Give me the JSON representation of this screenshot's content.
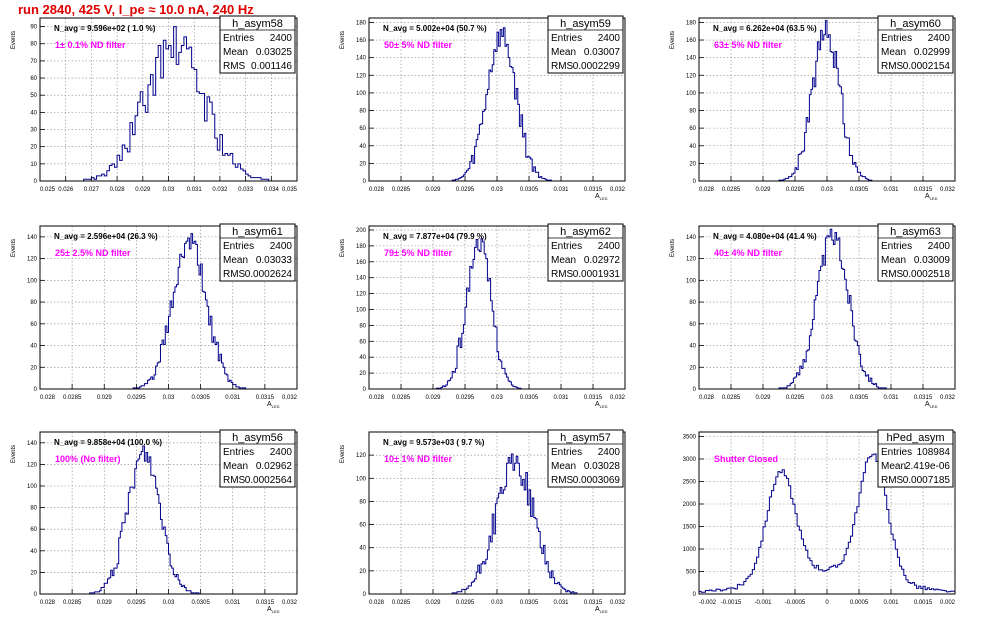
{
  "run_title": "run 2840,   425 V, I_pe ≈ 10.0 nA, 240 Hz",
  "colors": {
    "title": "#e00000",
    "histogram": "#00008b",
    "annotation": "#ff00ff",
    "grid": "#888888"
  },
  "chart_data": [
    {
      "type": "histogram",
      "hist_name": "h_asym58",
      "stats": {
        "entries": "2400",
        "mean": "0.03025",
        "rms": "0.001146"
      },
      "navg": "N_avg = 9.596e+02 ( 1.0 %)",
      "annotation": "1± 0.1% ND filter",
      "ylabel": "Events",
      "xlabel": "",
      "xlim": [
        0.025,
        0.035
      ],
      "ylim": [
        0,
        95
      ],
      "xticks": [
        0.025,
        0.026,
        0.027,
        0.028,
        0.029,
        0.03,
        0.031,
        0.032,
        0.033,
        0.034,
        0.035
      ],
      "xticklabels": [
        "0.025",
        "0.026",
        "0.027",
        "0.028",
        "0.029",
        "0.03",
        "0.031",
        "0.032",
        "0.033",
        "0.034",
        "0.035"
      ],
      "yticks": [
        0,
        10,
        20,
        30,
        40,
        50,
        60,
        70,
        80,
        90
      ],
      "yticklabels": [
        "0",
        "10",
        "20",
        "30",
        "40",
        "50",
        "60",
        "70",
        "80",
        "90"
      ],
      "shape": {
        "peaks": [
          {
            "mean": 0.03025,
            "sigma": 0.00115,
            "height": 78
          }
        ],
        "noise": 12,
        "bins": 100,
        "seed": 58
      }
    },
    {
      "type": "histogram",
      "hist_name": "h_asym59",
      "stats": {
        "entries": "2400",
        "mean": "0.03007",
        "rms": "0.0002299"
      },
      "navg": "N_avg = 5.002e+04 (50.7 %)",
      "annotation": "50± 5% ND filter",
      "ylabel": "Events",
      "xlabel": "A",
      "xlim": [
        0.028,
        0.032
      ],
      "ylim": [
        0,
        185
      ],
      "xticks": [
        0.028,
        0.0285,
        0.029,
        0.0295,
        0.03,
        0.0305,
        0.031,
        0.0315,
        0.032
      ],
      "xticklabels": [
        "0.028",
        "0.0285",
        "0.029",
        "0.0295",
        "0.03",
        "0.0305",
        "0.031",
        "0.0315",
        "0.032"
      ],
      "yticks": [
        0,
        20,
        40,
        60,
        80,
        100,
        120,
        140,
        160,
        180
      ],
      "yticklabels": [
        "0",
        "20",
        "40",
        "60",
        "80",
        "100",
        "120",
        "140",
        "160",
        "180"
      ],
      "shape": {
        "peaks": [
          {
            "mean": 0.03007,
            "sigma": 0.00023,
            "height": 165
          }
        ],
        "noise": 14,
        "bins": 160,
        "seed": 59
      }
    },
    {
      "type": "histogram",
      "hist_name": "h_asym60",
      "stats": {
        "entries": "2400",
        "mean": "0.02999",
        "rms": "0.0002154"
      },
      "navg": "N_avg = 6.262e+04 (63.5 %)",
      "annotation": "63± 5% ND filter",
      "ylabel": "Events",
      "xlabel": "A",
      "xlim": [
        0.028,
        0.032
      ],
      "ylim": [
        0,
        185
      ],
      "xticks": [
        0.028,
        0.0285,
        0.029,
        0.0295,
        0.03,
        0.0305,
        0.031,
        0.0315,
        0.032
      ],
      "xticklabels": [
        "0.028",
        "0.0285",
        "0.029",
        "0.0295",
        "0.03",
        "0.0305",
        "0.031",
        "0.0315",
        "0.032"
      ],
      "yticks": [
        0,
        20,
        40,
        60,
        80,
        100,
        120,
        140,
        160,
        180
      ],
      "yticklabels": [
        "0",
        "20",
        "40",
        "60",
        "80",
        "100",
        "120",
        "140",
        "160",
        "180"
      ],
      "shape": {
        "peaks": [
          {
            "mean": 0.02999,
            "sigma": 0.000215,
            "height": 170
          }
        ],
        "noise": 16,
        "bins": 160,
        "seed": 60
      }
    },
    {
      "type": "histogram",
      "hist_name": "h_asym61",
      "stats": {
        "entries": "2400",
        "mean": "0.03033",
        "rms": "0.0002624"
      },
      "navg": "N_avg = 2.596e+04 (26.3 %)",
      "annotation": "25± 2.5% ND filter",
      "ylabel": "Events",
      "xlabel": "A",
      "xlim": [
        0.028,
        0.032
      ],
      "ylim": [
        0,
        150
      ],
      "xticks": [
        0.028,
        0.0285,
        0.029,
        0.0295,
        0.03,
        0.0305,
        0.031,
        0.0315,
        0.032
      ],
      "xticklabels": [
        "0.028",
        "0.0285",
        "0.029",
        "0.0295",
        "0.03",
        "0.0305",
        "0.031",
        "0.0315",
        "0.032"
      ],
      "yticks": [
        0,
        20,
        40,
        60,
        80,
        100,
        120,
        140
      ],
      "yticklabels": [
        "0",
        "20",
        "40",
        "60",
        "80",
        "100",
        "120",
        "140"
      ],
      "shape": {
        "peaks": [
          {
            "mean": 0.03033,
            "sigma": 0.00026,
            "height": 135
          }
        ],
        "noise": 10,
        "bins": 160,
        "seed": 61
      }
    },
    {
      "type": "histogram",
      "hist_name": "h_asym62",
      "stats": {
        "entries": "2400",
        "mean": "0.02972",
        "rms": "0.0001931"
      },
      "navg": "N_avg = 7.877e+04 (79.9 %)",
      "annotation": "79± 5% ND filter",
      "ylabel": "Events",
      "xlabel": "A",
      "xlim": [
        0.028,
        0.032
      ],
      "ylim": [
        0,
        205
      ],
      "xticks": [
        0.028,
        0.0285,
        0.029,
        0.0295,
        0.03,
        0.0305,
        0.031,
        0.0315,
        0.032
      ],
      "xticklabels": [
        "0.028",
        "0.0285",
        "0.029",
        "0.0295",
        "0.03",
        "0.0305",
        "0.031",
        "0.0315",
        "0.032"
      ],
      "yticks": [
        0,
        20,
        40,
        60,
        80,
        100,
        120,
        140,
        160,
        180,
        200
      ],
      "yticklabels": [
        "0",
        "20",
        "40",
        "60",
        "80",
        "100",
        "120",
        "140",
        "160",
        "180",
        "200"
      ],
      "shape": {
        "peaks": [
          {
            "mean": 0.02972,
            "sigma": 0.000193,
            "height": 185
          }
        ],
        "noise": 12,
        "bins": 160,
        "seed": 62
      }
    },
    {
      "type": "histogram",
      "hist_name": "h_asym63",
      "stats": {
        "entries": "2400",
        "mean": "0.03009",
        "rms": "0.0002518"
      },
      "navg": "N_avg = 4.080e+04 (41.4 %)",
      "annotation": "40± 4% ND filter",
      "ylabel": "Events",
      "xlabel": "A",
      "xlim": [
        0.028,
        0.032
      ],
      "ylim": [
        0,
        150
      ],
      "xticks": [
        0.028,
        0.0285,
        0.029,
        0.0295,
        0.03,
        0.0305,
        0.031,
        0.0315,
        0.032
      ],
      "xticklabels": [
        "0.028",
        "0.0285",
        "0.029",
        "0.0295",
        "0.03",
        "0.0305",
        "0.031",
        "0.0315",
        "0.032"
      ],
      "yticks": [
        0,
        20,
        40,
        60,
        80,
        100,
        120,
        140
      ],
      "yticklabels": [
        "0",
        "20",
        "40",
        "60",
        "80",
        "100",
        "120",
        "140"
      ],
      "shape": {
        "peaks": [
          {
            "mean": 0.03009,
            "sigma": 0.00025,
            "height": 140
          }
        ],
        "noise": 10,
        "bins": 160,
        "seed": 63
      }
    },
    {
      "type": "histogram",
      "hist_name": "h_asym56",
      "stats": {
        "entries": "2400",
        "mean": "0.02962",
        "rms": "0.0002564"
      },
      "navg": "N_avg = 9.858e+04 (100.0 %)",
      "annotation": "100% (No filter)",
      "ylabel": "Events",
      "xlabel": "A",
      "xlim": [
        0.028,
        0.032
      ],
      "ylim": [
        0,
        150
      ],
      "xticks": [
        0.028,
        0.0285,
        0.029,
        0.0295,
        0.03,
        0.0305,
        0.031,
        0.0315,
        0.032
      ],
      "xticklabels": [
        "0.028",
        "0.0285",
        "0.029",
        "0.0295",
        "0.03",
        "0.0305",
        "0.031",
        "0.0315",
        "0.032"
      ],
      "yticks": [
        0,
        20,
        40,
        60,
        80,
        100,
        120,
        140
      ],
      "yticklabels": [
        "0",
        "20",
        "40",
        "60",
        "80",
        "100",
        "120",
        "140"
      ],
      "shape": {
        "peaks": [
          {
            "mean": 0.02962,
            "sigma": 0.000256,
            "height": 130
          }
        ],
        "noise": 10,
        "bins": 160,
        "seed": 56
      }
    },
    {
      "type": "histogram",
      "hist_name": "h_asym57",
      "stats": {
        "entries": "2400",
        "mean": "0.03028",
        "rms": "0.0003069"
      },
      "navg": "N_avg = 9.573e+03 ( 9.7 %)",
      "annotation": "10± 1% ND filter",
      "ylabel": "Events",
      "xlabel": "A",
      "xlim": [
        0.028,
        0.032
      ],
      "ylim": [
        0,
        140
      ],
      "xticks": [
        0.028,
        0.0285,
        0.029,
        0.0295,
        0.03,
        0.0305,
        0.031,
        0.0315,
        0.032
      ],
      "xticklabels": [
        "0.028",
        "0.0285",
        "0.029",
        "0.0295",
        "0.03",
        "0.0305",
        "0.031",
        "0.0315",
        "0.032"
      ],
      "yticks": [
        0,
        20,
        40,
        60,
        80,
        100,
        120
      ],
      "yticklabels": [
        "0",
        "20",
        "40",
        "60",
        "80",
        "100",
        "120"
      ],
      "shape": {
        "peaks": [
          {
            "mean": 0.03028,
            "sigma": 0.0003,
            "height": 112
          }
        ],
        "noise": 12,
        "bins": 160,
        "seed": 57
      }
    },
    {
      "type": "histogram",
      "hist_name": "hPed_asym",
      "stats": {
        "entries": "108984",
        "mean": "2.419e-06",
        "rms": "0.0007185"
      },
      "navg": "",
      "annotation": "Shutter Closed",
      "ylabel": "",
      "xlabel": "",
      "xlim": [
        -0.002,
        0.002
      ],
      "ylim": [
        0,
        3600
      ],
      "xticks": [
        -0.002,
        -0.0015,
        -0.001,
        -0.0005,
        0,
        0.0005,
        0.001,
        0.0015,
        0.002
      ],
      "xticklabels": [
        "-0.002",
        "-0.0015",
        "-0.001",
        "-0.0005",
        "0",
        "0.0005",
        "0.001",
        "0.0015",
        "0.002"
      ],
      "yticks": [
        0,
        500,
        1000,
        1500,
        2000,
        2500,
        3000,
        3500
      ],
      "yticklabels": [
        "0",
        "500",
        "1000",
        "1500",
        "2000",
        "2500",
        "3000",
        "3500"
      ],
      "shape": {
        "peaks": [
          {
            "mean": -0.00072,
            "sigma": 0.00022,
            "height": 2350
          },
          {
            "mean": 0.00072,
            "sigma": 0.00022,
            "height": 2750
          },
          {
            "mean": 0,
            "sigma": 0.0009,
            "height": 520
          }
        ],
        "noise": 60,
        "bins": 120,
        "seed": 90
      }
    }
  ]
}
